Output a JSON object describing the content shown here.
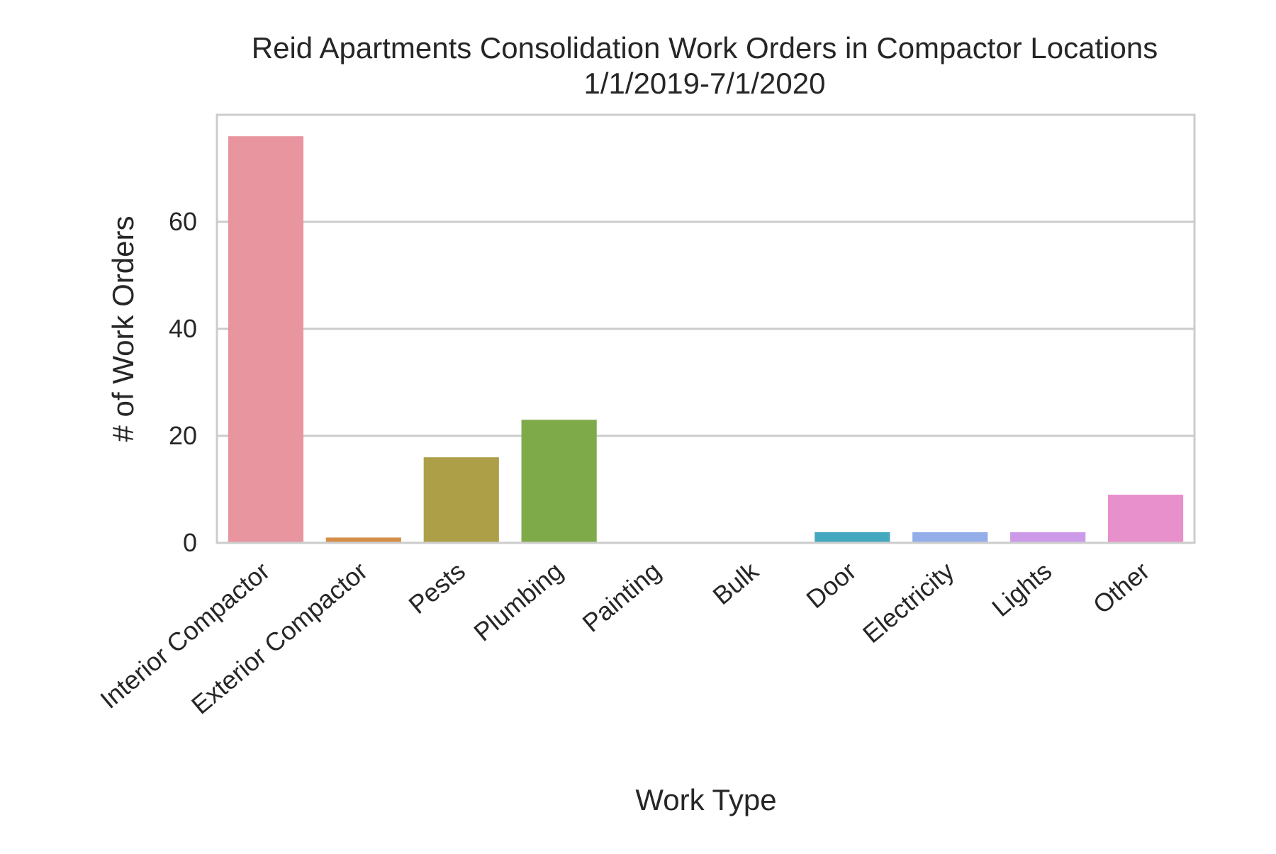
{
  "chart_data": {
    "type": "bar",
    "title": "Reid Apartments Consolidation Work Orders in Compactor Locations",
    "subtitle": "1/1/2019-7/1/2020",
    "xlabel": "Work Type",
    "ylabel": "# of Work Orders",
    "categories": [
      "Interior Compactor",
      "Exterior Compactor",
      "Pests",
      "Plumbing",
      "Painting",
      "Bulk",
      "Door",
      "Electricity",
      "Lights",
      "Other"
    ],
    "values": [
      76,
      1,
      16,
      23,
      0,
      0,
      2,
      2,
      2,
      9
    ],
    "colors": [
      "#e8959f",
      "#d48f4a",
      "#ad9e48",
      "#7faa4a",
      "#58a878",
      "#4eaa9c",
      "#44a8be",
      "#93aee8",
      "#cc9ae8",
      "#e890cc"
    ],
    "ylim": [
      0,
      80
    ],
    "yticks": [
      0,
      20,
      40,
      60
    ],
    "grid": true,
    "axes_color": "#cccccc",
    "text_color": "#262626"
  }
}
